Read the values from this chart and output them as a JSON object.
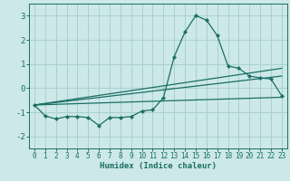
{
  "xlabel": "Humidex (Indice chaleur)",
  "background_color": "#cce8e8",
  "grid_color": "#aad0d0",
  "line_color": "#1a6e64",
  "xlim": [
    -0.5,
    23.5
  ],
  "ylim": [
    -2.5,
    3.5
  ],
  "yticks": [
    -2,
    -1,
    0,
    1,
    2,
    3
  ],
  "xticks": [
    0,
    1,
    2,
    3,
    4,
    5,
    6,
    7,
    8,
    9,
    10,
    11,
    12,
    13,
    14,
    15,
    16,
    17,
    18,
    19,
    20,
    21,
    22,
    23
  ],
  "series1_x": [
    0,
    1,
    2,
    3,
    4,
    5,
    6,
    7,
    8,
    9,
    10,
    11,
    12,
    13,
    14,
    15,
    16,
    17,
    18,
    19,
    20,
    21,
    22,
    23
  ],
  "series1_y": [
    -0.7,
    -1.15,
    -1.28,
    -1.18,
    -1.18,
    -1.22,
    -1.55,
    -1.22,
    -1.22,
    -1.18,
    -0.95,
    -0.9,
    -0.4,
    1.3,
    2.32,
    3.0,
    2.82,
    2.18,
    0.92,
    0.82,
    0.5,
    0.42,
    0.38,
    -0.32
  ],
  "series2_x": [
    0,
    23
  ],
  "series2_y": [
    -0.7,
    -0.38
  ],
  "series3_x": [
    0,
    23
  ],
  "series3_y": [
    -0.7,
    0.5
  ],
  "series4_x": [
    0,
    23
  ],
  "series4_y": [
    -0.7,
    0.82
  ]
}
